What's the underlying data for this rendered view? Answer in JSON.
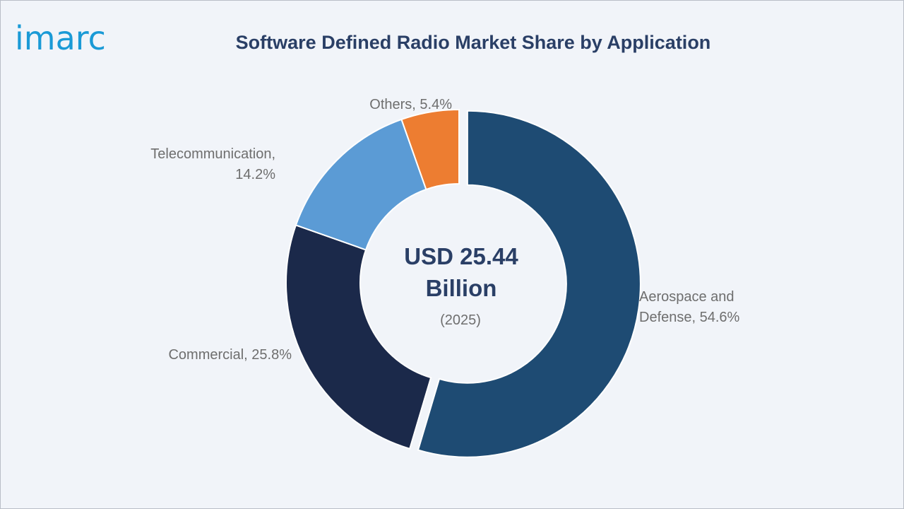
{
  "brand": {
    "logo_text": "imarc"
  },
  "chart_data": {
    "type": "pie",
    "title": "Software Defined Radio Market Share by Application",
    "center_value": "USD 25.44",
    "center_unit": "Billion",
    "center_year": "(2025)",
    "slices": [
      {
        "label": "Aerospace and Defense",
        "value": 54.6,
        "color": "#1e4b73",
        "text_lines": [
          "Aerospace and",
          "Defense, 54.6%"
        ],
        "exploded": true
      },
      {
        "label": "Commercial",
        "value": 25.8,
        "color": "#1b294a",
        "text_lines": [
          "Commercial, 25.8%"
        ],
        "exploded": false
      },
      {
        "label": "Telecommunication",
        "value": 14.2,
        "color": "#5b9bd5",
        "text_lines": [
          "Telecommunication,",
          "14.2%"
        ],
        "exploded": false
      },
      {
        "label": "Others",
        "value": 5.4,
        "color": "#ed7d31",
        "text_lines": [
          "Others, 5.4%"
        ],
        "exploded": false
      }
    ]
  }
}
